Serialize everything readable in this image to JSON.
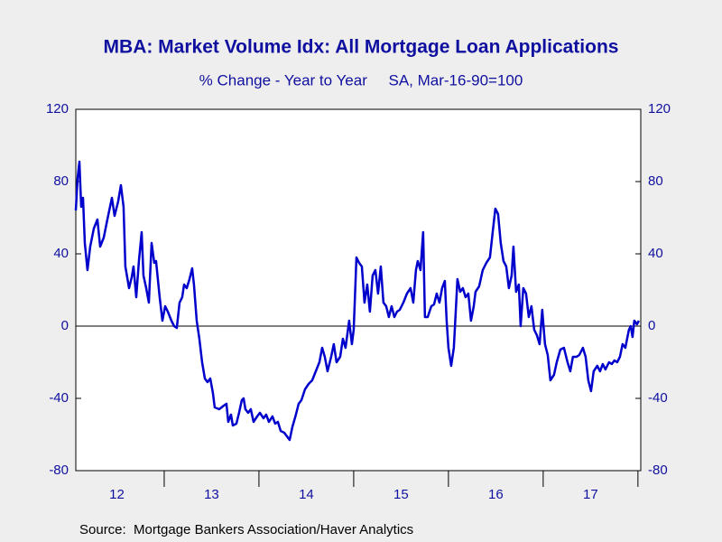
{
  "chart_data": {
    "type": "line",
    "title": "MBA: Market Volume Idx: All Mortgage Loan Applications",
    "subtitle": "% Change - Year to Year     SA, Mar-16-90=100",
    "source": "Source:  Mortgage Bankers Association/Haver Analytics",
    "xlim": [
      2012.067,
      2018.03
    ],
    "ylim": [
      -80,
      120
    ],
    "yticks": [
      -80,
      -40,
      0,
      40,
      80,
      120
    ],
    "xticks": [
      {
        "value": 2012.5,
        "label": "12"
      },
      {
        "value": 2013.5,
        "label": "13"
      },
      {
        "value": 2014.5,
        "label": "14"
      },
      {
        "value": 2015.5,
        "label": "15"
      },
      {
        "value": 2016.5,
        "label": "16"
      },
      {
        "value": 2017.5,
        "label": "17"
      }
    ],
    "xminorticks": [
      2013,
      2014,
      2015,
      2016,
      2017,
      2018
    ],
    "zero_line": true,
    "series": [
      {
        "color": "#0000cc",
        "x": [
          2012.067,
          2012.086,
          2012.105,
          2012.124,
          2012.143,
          2012.162,
          2012.19,
          2012.219,
          2012.257,
          2012.295,
          2012.324,
          2012.362,
          2012.4,
          2012.448,
          2012.476,
          2012.514,
          2012.543,
          2012.571,
          2012.59,
          2012.629,
          2012.657,
          2012.676,
          2012.705,
          2012.733,
          2012.762,
          2012.781,
          2012.81,
          2012.838,
          2012.867,
          2012.895,
          2012.914,
          2012.952,
          2012.981,
          2013.01,
          2013.038,
          2013.076,
          2013.105,
          2013.133,
          2013.162,
          2013.19,
          2013.21,
          2013.238,
          2013.267,
          2013.295,
          2013.314,
          2013.343,
          2013.371,
          2013.4,
          2013.429,
          2013.457,
          2013.486,
          2013.514,
          2013.533,
          2013.581,
          2013.629,
          2013.657,
          2013.676,
          2013.705,
          2013.724,
          2013.762,
          2013.79,
          2013.819,
          2013.838,
          2013.857,
          2013.886,
          2013.914,
          2013.943,
          2013.981,
          2014.01,
          2014.048,
          2014.076,
          2014.105,
          2014.143,
          2014.171,
          2014.2,
          2014.229,
          2014.267,
          2014.295,
          2014.324,
          2014.352,
          2014.39,
          2014.419,
          2014.448,
          2014.486,
          2014.524,
          2014.562,
          2014.6,
          2014.638,
          2014.667,
          2014.695,
          2014.724,
          2014.762,
          2014.79,
          2014.819,
          2014.857,
          2014.886,
          2014.914,
          2014.952,
          2014.981,
          2015.0,
          2015.029,
          2015.057,
          2015.086,
          2015.114,
          2015.143,
          2015.171,
          2015.2,
          2015.229,
          2015.257,
          2015.286,
          2015.314,
          2015.343,
          2015.371,
          2015.4,
          2015.429,
          2015.457,
          2015.486,
          2015.524,
          2015.562,
          2015.6,
          2015.629,
          2015.657,
          2015.676,
          2015.705,
          2015.733,
          2015.752,
          2015.781,
          2015.819,
          2015.848,
          2015.876,
          2015.905,
          2015.933,
          2015.962,
          2015.981,
          2016.0,
          2016.029,
          2016.057,
          2016.095,
          2016.124,
          2016.152,
          2016.181,
          2016.21,
          2016.238,
          2016.267,
          2016.286,
          2016.324,
          2016.362,
          2016.4,
          2016.438,
          2016.467,
          2016.495,
          2016.524,
          2016.552,
          2016.581,
          2016.61,
          2016.638,
          2016.667,
          2016.686,
          2016.714,
          2016.743,
          2016.762,
          2016.79,
          2016.819,
          2016.848,
          2016.876,
          2016.905,
          2016.933,
          2016.962,
          2016.99,
          2017.019,
          2017.048,
          2017.076,
          2017.114,
          2017.143,
          2017.181,
          2017.219,
          2017.257,
          2017.286,
          2017.314,
          2017.352,
          2017.381,
          2017.419,
          2017.448,
          2017.476,
          2017.505,
          2017.533,
          2017.571,
          2017.6,
          2017.629,
          2017.657,
          2017.695,
          2017.724,
          2017.752,
          2017.781,
          2017.81,
          2017.838,
          2017.867,
          2017.886,
          2017.905,
          2017.924,
          2017.943,
          2017.962,
          2017.99,
          2018.01
        ],
        "values": [
          64,
          82,
          91,
          66,
          71,
          46,
          31,
          44,
          54,
          59,
          44,
          49,
          59,
          71,
          61,
          69,
          78,
          66,
          33,
          21,
          27,
          33,
          16,
          36,
          52,
          28,
          21,
          13,
          46,
          35,
          36,
          16,
          3,
          11,
          8,
          3,
          0,
          -1,
          13,
          16,
          23,
          21,
          26,
          32,
          23,
          3,
          -7,
          -20,
          -29,
          -31,
          -29,
          -37,
          -45,
          -46,
          -44,
          -43,
          -53,
          -49,
          -55,
          -54,
          -48,
          -41,
          -40,
          -46,
          -48,
          -46,
          -53,
          -50,
          -48,
          -51,
          -49,
          -53,
          -50,
          -54,
          -53,
          -58,
          -59,
          -61,
          -63,
          -56,
          -49,
          -43,
          -41,
          -35,
          -32,
          -30,
          -25,
          -20,
          -12,
          -17,
          -25,
          -17,
          -10,
          -20,
          -17,
          -7,
          -12,
          3,
          -10,
          -2,
          38,
          35,
          33,
          13,
          23,
          8,
          28,
          31,
          18,
          33,
          13,
          11,
          5,
          11,
          5,
          8,
          9,
          13,
          18,
          21,
          13,
          31,
          36,
          31,
          52,
          5,
          5,
          11,
          12,
          18,
          13,
          21,
          25,
          3,
          -12,
          -22,
          -12,
          26,
          19,
          21,
          16,
          18,
          3,
          11,
          19,
          22,
          31,
          35,
          38,
          52,
          65,
          62,
          46,
          36,
          33,
          21,
          28,
          44,
          19,
          23,
          0,
          21,
          18,
          5,
          11,
          -2,
          -5,
          -10,
          9,
          -10,
          -16,
          -30,
          -27,
          -20,
          -13,
          -12,
          -20,
          -25,
          -17,
          -17,
          -16,
          -12,
          -17,
          -30,
          -36,
          -25,
          -22,
          -25,
          -21,
          -24,
          -20,
          -21,
          -19,
          -20,
          -17,
          -10,
          -12,
          -7,
          -2,
          0,
          -6,
          3,
          1,
          3
        ]
      }
    ]
  }
}
